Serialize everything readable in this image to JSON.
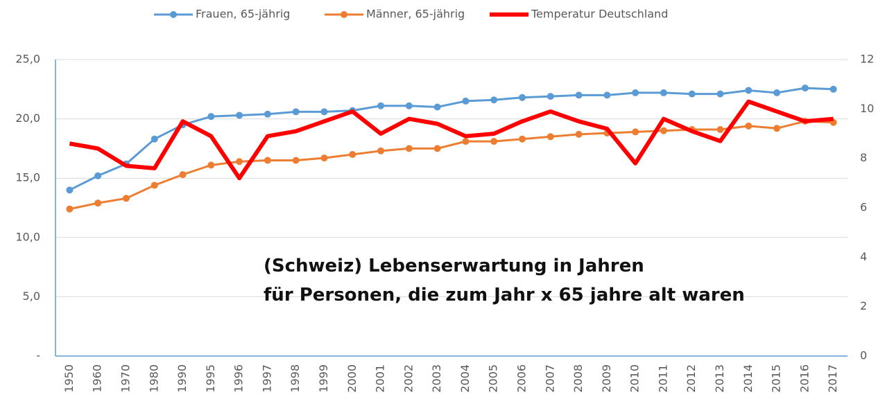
{
  "chart_data": {
    "type": "line",
    "categories": [
      "1950",
      "1960",
      "1970",
      "1980",
      "1990",
      "1995",
      "1996",
      "1997",
      "1998",
      "1999",
      "2000",
      "2001",
      "2002",
      "2003",
      "2004",
      "2005",
      "2006",
      "2007",
      "2008",
      "2009",
      "2010",
      "2011",
      "2012",
      "2013",
      "2014",
      "2015",
      "2016",
      "2017"
    ],
    "series": [
      {
        "name": "Frauen, 65-jährig",
        "color": "#5b9bd5",
        "marker": true,
        "values": [
          14.0,
          15.2,
          16.2,
          18.3,
          19.5,
          20.2,
          20.3,
          20.4,
          20.6,
          20.6,
          20.7,
          21.1,
          21.1,
          21.0,
          21.5,
          21.6,
          21.8,
          21.9,
          22.0,
          22.0,
          22.2,
          22.2,
          22.1,
          22.1,
          22.4,
          22.2,
          22.6,
          22.5
        ]
      },
      {
        "name": "Männer, 65-jährig",
        "color": "#ed7d31",
        "marker": true,
        "values": [
          12.4,
          12.9,
          13.3,
          14.4,
          15.3,
          16.1,
          16.4,
          16.5,
          16.5,
          16.7,
          17.0,
          17.3,
          17.5,
          17.5,
          18.1,
          18.1,
          18.3,
          18.5,
          18.7,
          18.8,
          18.9,
          19.0,
          19.1,
          19.1,
          19.4,
          19.2,
          19.8,
          19.7
        ]
      },
      {
        "name": "Temperatur Deutschland",
        "color": "#ff0000",
        "marker": false,
        "axis": "y2",
        "values": [
          8.6,
          8.4,
          7.7,
          7.6,
          9.5,
          8.9,
          7.2,
          8.9,
          9.1,
          9.5,
          9.9,
          9.0,
          9.6,
          9.4,
          8.9,
          9.0,
          9.5,
          9.9,
          9.5,
          9.2,
          7.8,
          9.6,
          9.1,
          8.7,
          10.3,
          9.9,
          9.5,
          9.6
        ]
      }
    ],
    "ylim": [
      0,
      25
    ],
    "yticks": [
      {
        "value": 0,
        "label": "-"
      },
      {
        "value": 5,
        "label": "5,0"
      },
      {
        "value": 10,
        "label": "10,0"
      },
      {
        "value": 15,
        "label": "15,0"
      },
      {
        "value": 20,
        "label": "20,0"
      },
      {
        "value": 25,
        "label": "25,0"
      }
    ],
    "y2lim": [
      0,
      12
    ],
    "y2ticks": [
      0,
      2,
      4,
      6,
      8,
      10,
      12
    ],
    "grid": true,
    "legend": "top",
    "annotation": [
      "(Schweiz) Lebenserwartung in Jahren",
      "für Personen, die zum Jahr x 65 jahre alt waren"
    ]
  }
}
